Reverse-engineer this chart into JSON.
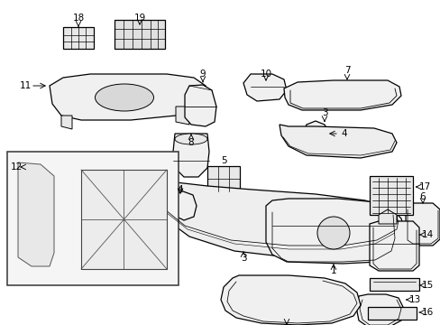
{
  "bg_color": "#ffffff",
  "line_color": "#000000",
  "fig_w": 4.89,
  "fig_h": 3.6,
  "dpi": 100
}
